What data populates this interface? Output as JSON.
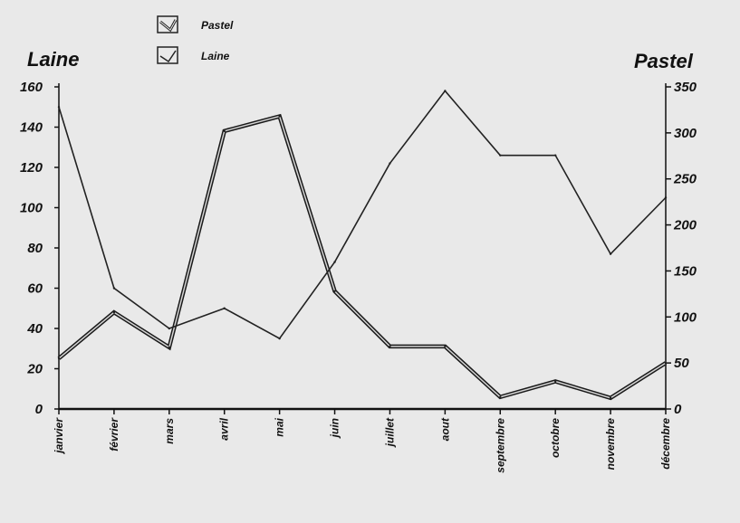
{
  "chart_data": {
    "type": "line",
    "categories": [
      "janvier",
      "février",
      "mars",
      "avril",
      "mai",
      "juin",
      "juillet",
      "aout",
      "septembre",
      "octobre",
      "novembre",
      "décembre"
    ],
    "y_left": {
      "label": "Laine",
      "ylim": [
        0,
        160
      ],
      "ticks": [
        0,
        20,
        40,
        60,
        80,
        100,
        120,
        140,
        160
      ]
    },
    "y_right": {
      "label": "Pastel",
      "ylim": [
        0,
        350
      ],
      "ticks": [
        0,
        50,
        100,
        150,
        200,
        250,
        300,
        350
      ]
    },
    "series": [
      {
        "name": "Pastel",
        "axis": "right",
        "style": "double",
        "values": [
          55,
          105,
          67,
          302,
          318,
          128,
          68,
          68,
          13,
          30,
          12,
          50
        ]
      },
      {
        "name": "Laine",
        "axis": "left",
        "style": "single",
        "values": [
          150,
          60,
          40,
          50,
          35,
          73,
          122,
          158,
          126,
          126,
          77,
          105
        ]
      }
    ],
    "grid": false,
    "legend_position": "top-left"
  }
}
